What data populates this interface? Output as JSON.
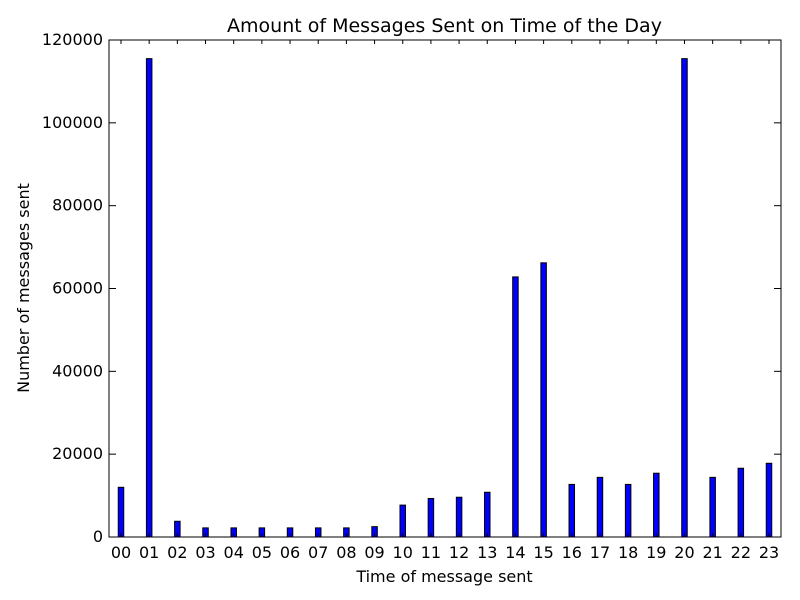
{
  "chart_data": {
    "type": "bar",
    "title": "Amount of Messages Sent on Time of the Day",
    "xlabel": "Time of message sent",
    "ylabel": "Number of messages sent",
    "ylim": [
      0,
      120000
    ],
    "yticks": [
      "0",
      "20000",
      "40000",
      "60000",
      "80000",
      "100000",
      "120000"
    ],
    "categories": [
      "00",
      "01",
      "02",
      "03",
      "04",
      "05",
      "06",
      "07",
      "08",
      "09",
      "10",
      "11",
      "12",
      "13",
      "14",
      "15",
      "16",
      "17",
      "18",
      "19",
      "20",
      "21",
      "22",
      "23"
    ],
    "values": [
      12000,
      115500,
      3800,
      2200,
      2200,
      2200,
      2200,
      2200,
      2200,
      2500,
      7700,
      9300,
      9600,
      10800,
      62800,
      66200,
      12700,
      14400,
      12700,
      15400,
      115500,
      14400,
      16600,
      17800
    ],
    "bar_color": "#0000ff",
    "grid": false,
    "legend": "none"
  }
}
